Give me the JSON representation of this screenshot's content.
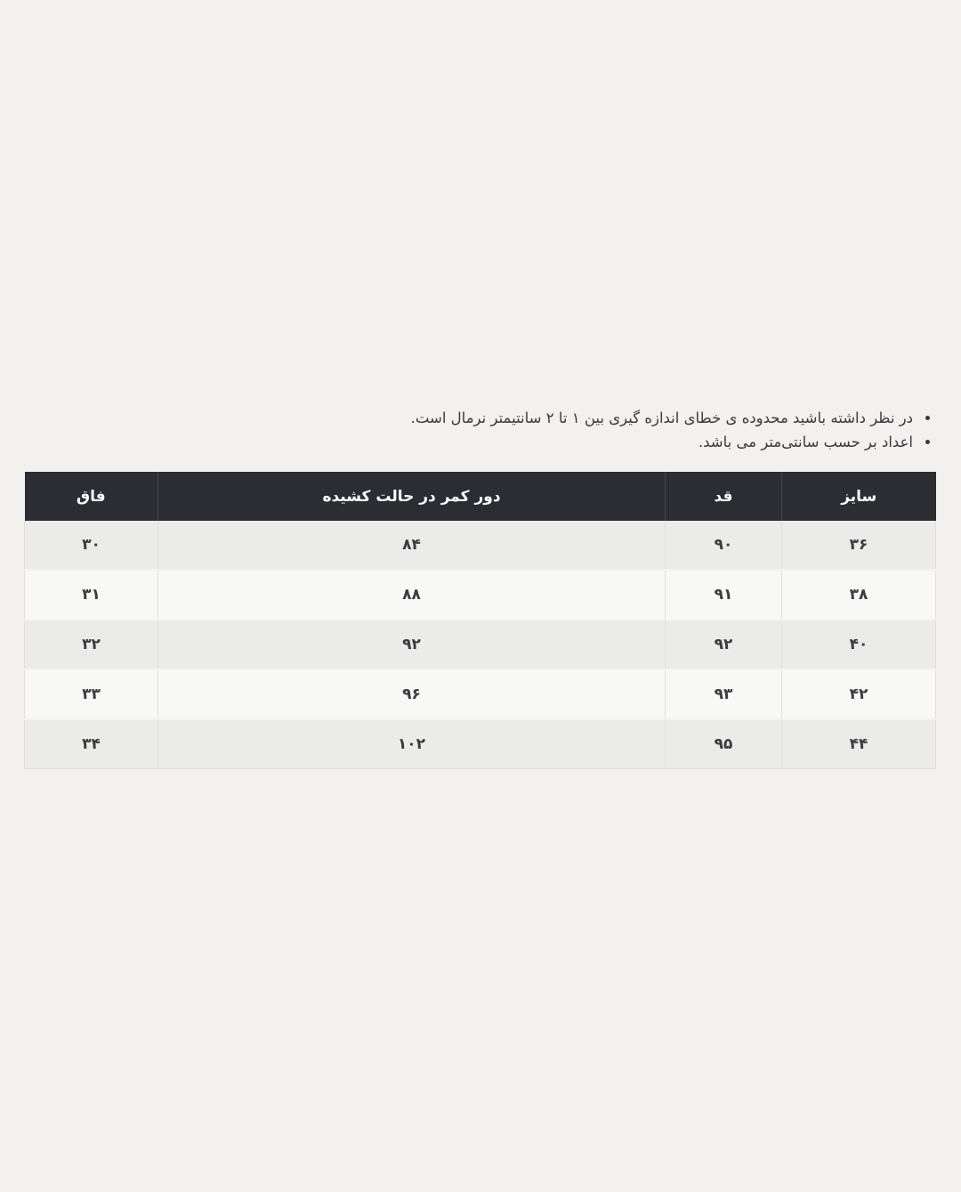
{
  "page": {
    "background_color": "#f2f1ef",
    "direction": "rtl",
    "language": "fa"
  },
  "notes": {
    "items": [
      "در نظر داشته باشید محدوده ی خطای اندازه گیری بین ۱ تا ۲ سانتیمتر نرمال است.",
      "اعداد بر حسب سانتی‌متر می باشد."
    ]
  },
  "size_table": {
    "columns": [
      "سایز",
      "قد",
      "دور کمر در حالت کشیده",
      "فاق"
    ],
    "rows": [
      [
        "۳۶",
        "۹۰",
        "۸۴",
        "۳۰"
      ],
      [
        "۳۸",
        "۹۱",
        "۸۸",
        "۳۱"
      ],
      [
        "۴۰",
        "۹۲",
        "۹۲",
        "۳۲"
      ],
      [
        "۴۲",
        "۹۳",
        "۹۶",
        "۳۳"
      ],
      [
        "۴۴",
        "۹۵",
        "۱۰۲",
        "۳۴"
      ]
    ],
    "colors": {
      "header_background": "#2b2d32",
      "header_text": "#ffffff",
      "header_divider": "#43464b",
      "row_odd_background": "#ebebea",
      "row_even_background": "#f8f8f7",
      "cell_text": "#3c3c3e",
      "cell_divider": "#dfdfdd"
    }
  }
}
